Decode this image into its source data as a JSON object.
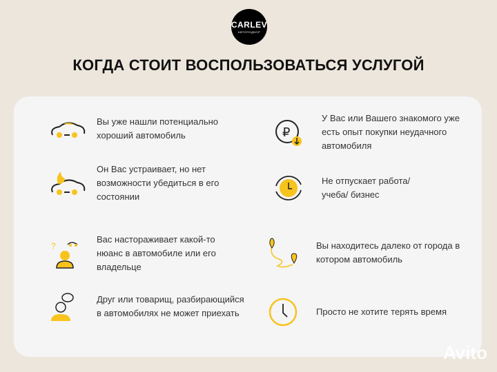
{
  "logo": {
    "name": "CARLEV",
    "sub": "АВТОПОДБОР"
  },
  "title": "КОГДА СТОИТ ВОСПОЛЬЗОВАТЬСЯ УСЛУГОЙ",
  "items": [
    {
      "icon": "car-icon",
      "text": "Вы уже нашли потенциально хороший автомобиль"
    },
    {
      "icon": "car-fire-icon",
      "text": "Он Вас устраивает, но нет возможности убедиться в его состоянии"
    },
    {
      "icon": "person-question-car-icon",
      "text": "Вас настораживает какой-то нюанс в автомобиле или его владельце"
    },
    {
      "icon": "person-chat-icon",
      "text": "Друг или товарищ, разбирающийся в автомобилях не может приехать"
    },
    {
      "icon": "ruble-down-icon",
      "text": "У Вас или Вашего знакомого уже есть опыт покупки неудачного автомобиля"
    },
    {
      "icon": "clock-cycle-icon",
      "text": "Не отпускает работа/учеба/ бизнес"
    },
    {
      "icon": "route-pins-icon",
      "text": "Вы находитесь далеко от города в котором автомобиль"
    },
    {
      "icon": "clock-icon",
      "text": "Просто не хотите терять время"
    }
  ],
  "watermark": "Avito",
  "colors": {
    "accent": "#f7c31d",
    "background": "#ede6dc",
    "card": "#f5f5f5"
  }
}
